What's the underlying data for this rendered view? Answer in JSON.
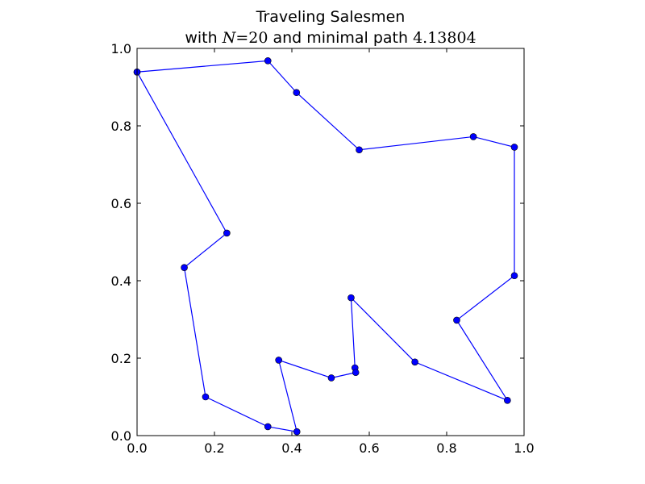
{
  "chart_data": {
    "type": "line",
    "title": {
      "line1": "Traveling Salesmen",
      "line2_prefix": "with ",
      "line2_var": "N",
      "line2_eq": "=",
      "line2_n": "20",
      "line2_mid": " and minimal path ",
      "line2_value": "4.13804"
    },
    "xlabel": "",
    "ylabel": "",
    "xlim": [
      0,
      1
    ],
    "ylim": [
      0,
      1
    ],
    "xticks": [
      0.0,
      0.2,
      0.4,
      0.6,
      0.8,
      1.0
    ],
    "yticks": [
      0.0,
      0.2,
      0.4,
      0.6,
      0.8,
      1.0
    ],
    "xtick_labels": [
      "0.0",
      "0.2",
      "0.4",
      "0.6",
      "0.8",
      "1.0"
    ],
    "ytick_labels": [
      "0.0",
      "0.2",
      "0.4",
      "0.6",
      "0.8",
      "1.0"
    ],
    "grid": false,
    "legend": "none",
    "series": [
      {
        "color": "#0000ff",
        "marker": "circle",
        "x": [
          0.0,
          0.338,
          0.412,
          0.574,
          0.869,
          0.975,
          0.975,
          0.826,
          0.957,
          0.718,
          0.553,
          0.563,
          0.565,
          0.502,
          0.366,
          0.413,
          0.338,
          0.177,
          0.122,
          0.232,
          0.0
        ],
        "y": [
          0.939,
          0.968,
          0.886,
          0.738,
          0.772,
          0.745,
          0.413,
          0.298,
          0.091,
          0.19,
          0.356,
          0.175,
          0.163,
          0.149,
          0.195,
          0.01,
          0.023,
          0.1,
          0.434,
          0.523,
          0.939
        ]
      }
    ]
  }
}
